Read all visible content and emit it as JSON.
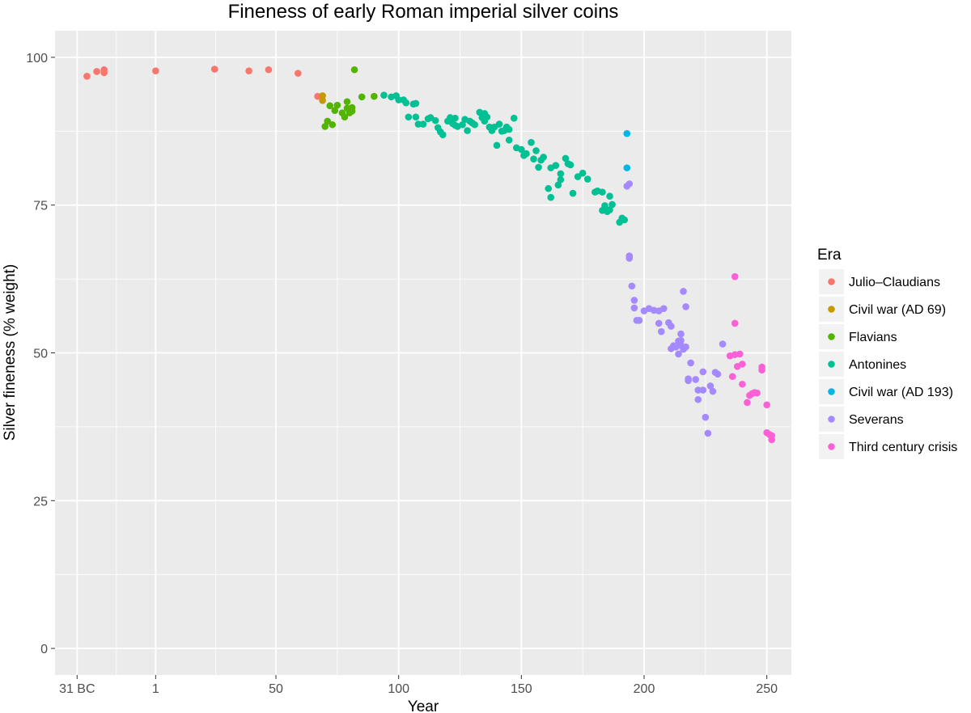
{
  "chart_data": {
    "type": "scatter",
    "title": "Fineness of early Roman imperial silver coins",
    "xlabel": "Year",
    "ylabel": "Silver fineness (% weight)",
    "xlim": [
      -40,
      260
    ],
    "ylim": [
      -4.5,
      104.5
    ],
    "x_ticks": [
      {
        "value": -31,
        "label": "31 BC"
      },
      {
        "value": 1,
        "label": "1"
      },
      {
        "value": 50,
        "label": "50"
      },
      {
        "value": 100,
        "label": "100"
      },
      {
        "value": 150,
        "label": "150"
      },
      {
        "value": 200,
        "label": "200"
      },
      {
        "value": 250,
        "label": "250"
      }
    ],
    "y_ticks": [
      {
        "value": 0,
        "label": "0"
      },
      {
        "value": 25,
        "label": "25"
      },
      {
        "value": 50,
        "label": "50"
      },
      {
        "value": 75,
        "label": "75"
      },
      {
        "value": 100,
        "label": "100"
      }
    ],
    "grid": true,
    "background": "#ebebeb",
    "grid_color": "#ffffff",
    "legend": {
      "title": "Era",
      "position": "right"
    },
    "series": [
      {
        "name": "Julio–Claudians",
        "color": "#F8766D",
        "points": [
          [
            -27,
            96.8
          ],
          [
            -23,
            97.6
          ],
          [
            -20,
            97.9
          ],
          [
            -20,
            97.4
          ],
          [
            1,
            97.7
          ],
          [
            25,
            98.0
          ],
          [
            39,
            97.7
          ],
          [
            47,
            97.9
          ],
          [
            59,
            97.3
          ],
          [
            67,
            93.4
          ]
        ]
      },
      {
        "name": "Civil war (AD 69)",
        "color": "#C49A00",
        "points": [
          [
            69,
            93.5
          ],
          [
            69,
            92.7
          ]
        ]
      },
      {
        "name": "Flavians",
        "color": "#53B400",
        "points": [
          [
            70,
            88.3
          ],
          [
            71,
            89.2
          ],
          [
            72,
            91.8
          ],
          [
            73,
            88.6
          ],
          [
            74,
            91.0
          ],
          [
            75,
            91.9
          ],
          [
            77,
            90.6
          ],
          [
            78,
            89.9
          ],
          [
            79,
            91.4
          ],
          [
            79,
            92.5
          ],
          [
            80,
            90.6
          ],
          [
            81,
            91.5
          ],
          [
            81,
            90.9
          ],
          [
            82,
            97.9
          ],
          [
            85,
            93.3
          ],
          [
            90,
            93.4
          ]
        ]
      },
      {
        "name": "Antonines",
        "color": "#00C094",
        "points": [
          [
            94,
            93.6
          ],
          [
            97,
            93.3
          ],
          [
            99,
            93.5
          ],
          [
            100,
            92.8
          ],
          [
            102,
            92.8
          ],
          [
            103,
            92.3
          ],
          [
            104,
            89.9
          ],
          [
            106,
            92.1
          ],
          [
            107,
            92.2
          ],
          [
            107,
            89.9
          ],
          [
            108,
            88.7
          ],
          [
            110,
            88.7
          ],
          [
            112,
            89.6
          ],
          [
            113,
            89.8
          ],
          [
            115,
            89.3
          ],
          [
            116,
            88.1
          ],
          [
            117,
            87.4
          ],
          [
            118,
            86.9
          ],
          [
            120,
            89.2
          ],
          [
            121,
            89.8
          ],
          [
            122,
            88.8
          ],
          [
            123,
            89.7
          ],
          [
            123,
            88.5
          ],
          [
            124,
            88.3
          ],
          [
            126,
            88.6
          ],
          [
            127,
            89.5
          ],
          [
            128,
            87.6
          ],
          [
            129,
            89.2
          ],
          [
            130,
            88.9
          ],
          [
            131,
            88.6
          ],
          [
            133,
            90.7
          ],
          [
            134,
            89.8
          ],
          [
            135,
            90.5
          ],
          [
            135,
            89.2
          ],
          [
            136,
            89.9
          ],
          [
            137,
            88.2
          ],
          [
            138,
            87.6
          ],
          [
            139,
            88.2
          ],
          [
            140,
            85.1
          ],
          [
            141,
            88.7
          ],
          [
            142,
            87.5
          ],
          [
            143,
            87.6
          ],
          [
            144,
            88.2
          ],
          [
            145,
            87.8
          ],
          [
            145,
            86.0
          ],
          [
            147,
            89.7
          ],
          [
            148,
            84.7
          ],
          [
            150,
            84.4
          ],
          [
            151,
            83.4
          ],
          [
            152,
            83.7
          ],
          [
            154,
            85.6
          ],
          [
            155,
            82.8
          ],
          [
            156,
            84.2
          ],
          [
            157,
            81.4
          ],
          [
            158,
            82.6
          ],
          [
            159,
            83.1
          ],
          [
            161,
            77.8
          ],
          [
            162,
            81.3
          ],
          [
            162,
            76.3
          ],
          [
            164,
            81.7
          ],
          [
            165,
            78.4
          ],
          [
            166,
            79.3
          ],
          [
            166,
            80.3
          ],
          [
            168,
            82.9
          ],
          [
            169,
            82.0
          ],
          [
            170,
            81.8
          ],
          [
            171,
            77.0
          ],
          [
            173,
            79.8
          ],
          [
            175,
            80.4
          ],
          [
            177,
            79.4
          ],
          [
            180,
            77.2
          ],
          [
            181,
            77.4
          ],
          [
            183,
            74.1
          ],
          [
            183,
            77.2
          ],
          [
            184,
            74.9
          ],
          [
            185,
            73.9
          ],
          [
            186,
            74.2
          ],
          [
            186,
            76.5
          ],
          [
            187,
            75.1
          ],
          [
            190,
            72.1
          ],
          [
            191,
            72.8
          ],
          [
            192,
            72.5
          ]
        ]
      },
      {
        "name": "Civil war (AD 193)",
        "color": "#00B6EB",
        "points": [
          [
            193,
            87.1
          ],
          [
            193,
            81.3
          ]
        ]
      },
      {
        "name": "Severans",
        "color": "#A58AFF",
        "points": [
          [
            193,
            78.2
          ],
          [
            194,
            78.6
          ],
          [
            194,
            66.4
          ],
          [
            194,
            66.0
          ],
          [
            195,
            61.3
          ],
          [
            196,
            58.9
          ],
          [
            196,
            57.6
          ],
          [
            197,
            55.5
          ],
          [
            198,
            55.5
          ],
          [
            200,
            57.1
          ],
          [
            202,
            57.5
          ],
          [
            204,
            57.2
          ],
          [
            206,
            55.0
          ],
          [
            206,
            57.1
          ],
          [
            207,
            53.6
          ],
          [
            208,
            57.5
          ],
          [
            210,
            55.1
          ],
          [
            211,
            54.5
          ],
          [
            211,
            50.7
          ],
          [
            212,
            51.2
          ],
          [
            213,
            51.0
          ],
          [
            214,
            49.8
          ],
          [
            214,
            52.0
          ],
          [
            215,
            51.3
          ],
          [
            215,
            53.2
          ],
          [
            215,
            52.1
          ],
          [
            216,
            50.6
          ],
          [
            216,
            60.4
          ],
          [
            217,
            57.8
          ],
          [
            217,
            51.0
          ],
          [
            218,
            45.6
          ],
          [
            218,
            45.3
          ],
          [
            219,
            48.3
          ],
          [
            221,
            45.5
          ],
          [
            222,
            43.7
          ],
          [
            222,
            42.1
          ],
          [
            224,
            43.7
          ],
          [
            224,
            46.8
          ],
          [
            225,
            39.1
          ],
          [
            226,
            36.4
          ],
          [
            227,
            44.4
          ],
          [
            228,
            43.5
          ],
          [
            229,
            46.7
          ],
          [
            230,
            46.4
          ],
          [
            232,
            51.5
          ]
        ]
      },
      {
        "name": "Third century crisis",
        "color": "#FB61D7",
        "points": [
          [
            235,
            49.5
          ],
          [
            236,
            46.0
          ],
          [
            237,
            62.9
          ],
          [
            237,
            55.0
          ],
          [
            237,
            49.7
          ],
          [
            238,
            47.7
          ],
          [
            239,
            49.8
          ],
          [
            240,
            48.1
          ],
          [
            240,
            44.7
          ],
          [
            242,
            41.6
          ],
          [
            243,
            42.8
          ],
          [
            244,
            43.1
          ],
          [
            245,
            43.3
          ],
          [
            246,
            43.2
          ],
          [
            248,
            47.1
          ],
          [
            248,
            47.6
          ],
          [
            250,
            41.2
          ],
          [
            250,
            36.5
          ],
          [
            251,
            36.2
          ],
          [
            252,
            36.0
          ],
          [
            252,
            35.3
          ]
        ]
      }
    ]
  }
}
